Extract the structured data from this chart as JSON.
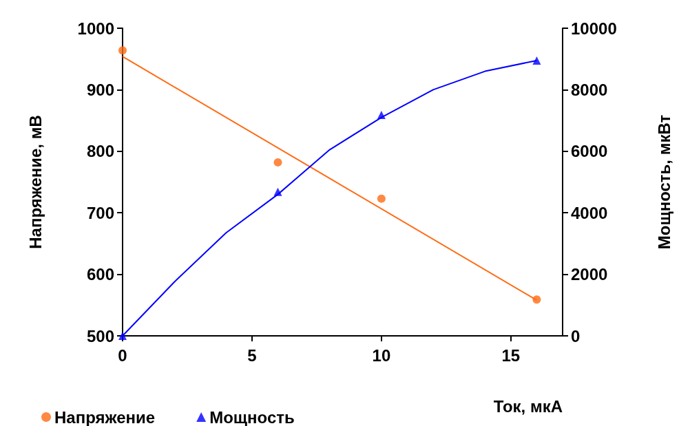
{
  "chart_data": {
    "type": "scatter",
    "xlabel": "Ток, мкА",
    "ylabel": "Напряжение, мВ",
    "y2label": "Мощность, мкВт",
    "xlim": [
      0,
      17
    ],
    "xticks": [
      0,
      5,
      10,
      15
    ],
    "ylim": [
      500,
      1000
    ],
    "yticks": [
      500,
      600,
      700,
      800,
      900,
      1000
    ],
    "y2lim": [
      0,
      10000
    ],
    "y2ticks": [
      0,
      2000,
      4000,
      6000,
      8000,
      10000
    ],
    "grid": false,
    "legend": "bottom left",
    "series": [
      {
        "name": "Напряжение",
        "marker": "circle",
        "color": "#ff6a13",
        "x": [
          0,
          6,
          10,
          16
        ],
        "values": [
          964,
          782,
          723,
          559
        ]
      },
      {
        "name": "Мощность",
        "marker": "triangle",
        "axis": "y2",
        "color": "#0000ff",
        "x": [
          0,
          6,
          10,
          16
        ],
        "values": [
          0,
          4680,
          7180,
          8950
        ]
      },
      {
        "type": "line",
        "color": "#ff6a13",
        "x": [
          0,
          16
        ],
        "values": [
          954,
          558
        ]
      },
      {
        "type": "line",
        "axis": "y2",
        "color": "#0000ff",
        "x": [
          0,
          2,
          4,
          6,
          8,
          10,
          12,
          14,
          16
        ],
        "values": [
          0,
          1750,
          3350,
          4600,
          6050,
          7100,
          8000,
          8600,
          8950
        ]
      }
    ]
  }
}
